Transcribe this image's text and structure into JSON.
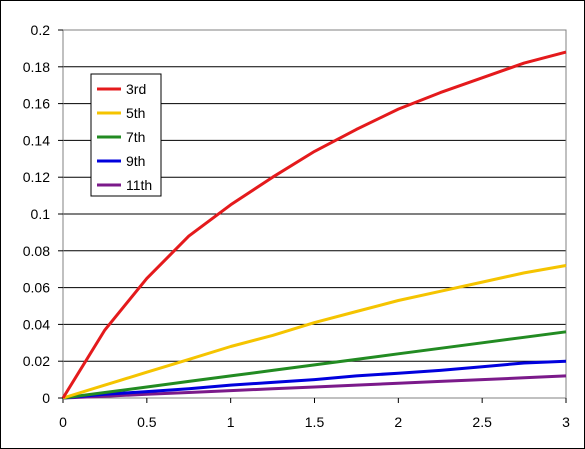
{
  "chart_data": {
    "type": "line",
    "title": "",
    "xlabel": "",
    "ylabel": "",
    "xlim": [
      0,
      3
    ],
    "ylim": [
      0,
      0.2
    ],
    "x_ticks": [
      "0",
      "0.5",
      "1",
      "1.5",
      "2",
      "2.5",
      "3"
    ],
    "y_ticks": [
      "0",
      "0.02",
      "0.04",
      "0.06",
      "0.08",
      "0.1",
      "0.12",
      "0.14",
      "0.16",
      "0.18",
      "0.2"
    ],
    "grid": "horizontal",
    "legend": "top-left",
    "x": [
      0,
      0.25,
      0.5,
      0.75,
      1,
      1.25,
      1.5,
      1.75,
      2,
      2.25,
      2.5,
      2.75,
      3
    ],
    "series": [
      {
        "name": "3rd",
        "color": "#e41a1c",
        "values": [
          0,
          0.037,
          0.065,
          0.088,
          0.105,
          0.12,
          0.134,
          0.146,
          0.157,
          0.166,
          0.174,
          0.182,
          0.188
        ]
      },
      {
        "name": "5th",
        "color": "#f5c400",
        "values": [
          0,
          0.007,
          0.014,
          0.021,
          0.028,
          0.034,
          0.041,
          0.047,
          0.053,
          0.058,
          0.063,
          0.068,
          0.072
        ]
      },
      {
        "name": "7th",
        "color": "#228b22",
        "values": [
          0,
          0.003,
          0.006,
          0.009,
          0.012,
          0.015,
          0.018,
          0.021,
          0.024,
          0.027,
          0.03,
          0.033,
          0.036
        ]
      },
      {
        "name": "9th",
        "color": "#0000dd",
        "values": [
          0,
          0.002,
          0.0035,
          0.005,
          0.007,
          0.0085,
          0.01,
          0.012,
          0.0135,
          0.015,
          0.017,
          0.019,
          0.02
        ]
      },
      {
        "name": "11th",
        "color": "#7b1a8a",
        "values": [
          0,
          0.001,
          0.002,
          0.003,
          0.004,
          0.005,
          0.006,
          0.007,
          0.008,
          0.009,
          0.01,
          0.011,
          0.012
        ]
      }
    ]
  }
}
